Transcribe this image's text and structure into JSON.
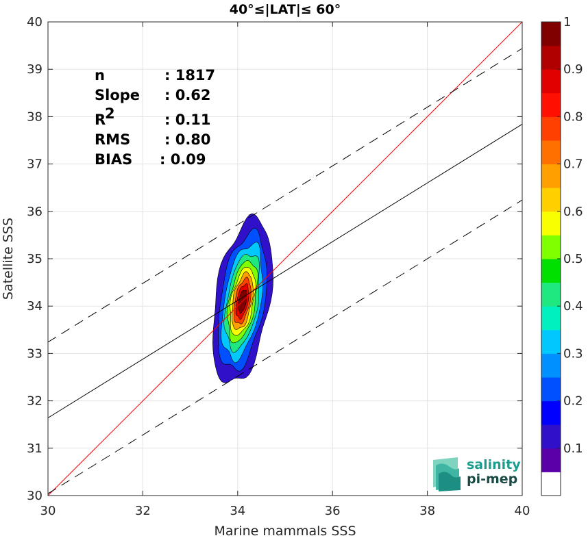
{
  "chart_data": {
    "type": "contour-scatter",
    "title": "40°≤|LAT|≤ 60°",
    "xlabel": "Marine mammals SSS",
    "ylabel": "Satellite SSS",
    "xlim": [
      30,
      40
    ],
    "ylim": [
      30,
      40
    ],
    "xticks": [
      "30",
      "32",
      "34",
      "36",
      "38",
      "40"
    ],
    "yticks": [
      "30",
      "31",
      "32",
      "33",
      "34",
      "35",
      "36",
      "37",
      "38",
      "39",
      "40"
    ],
    "grid": true,
    "stats": [
      {
        "label": "n",
        "value": ": 1817"
      },
      {
        "label": "Slope",
        "value": ": 0.62"
      },
      {
        "label": "R",
        "sup": "2",
        "value": ": 0.11"
      },
      {
        "label": "RMS",
        "value": ": 0.80"
      },
      {
        "label": "BIAS",
        "value": ": 0.09"
      }
    ],
    "lines": {
      "identity": {
        "slope": 1,
        "intercept": 0,
        "color": "#ff0000"
      },
      "fit": {
        "slope": 0.62,
        "intercept": 13.04,
        "color": "#000000"
      },
      "envelope_offset": 1.6
    },
    "density_center": {
      "x": 34.1,
      "y": 34.1
    },
    "density_contours": [
      {
        "level": 0.05,
        "hw": 0.58,
        "hh": 1.75,
        "tilt": 0.14,
        "dx": 0.0,
        "dy": 0.0
      },
      {
        "level": 0.15,
        "hw": 0.47,
        "hh": 1.45,
        "tilt": 0.14,
        "dx": 0.0,
        "dy": 0.0
      },
      {
        "level": 0.25,
        "hw": 0.39,
        "hh": 1.22,
        "tilt": 0.15,
        "dx": 0.0,
        "dy": 0.0
      },
      {
        "level": 0.35,
        "hw": 0.33,
        "hh": 1.02,
        "tilt": 0.15,
        "dx": 0.0,
        "dy": 0.0
      },
      {
        "level": 0.45,
        "hw": 0.28,
        "hh": 0.86,
        "tilt": 0.16,
        "dx": 0.0,
        "dy": 0.0
      },
      {
        "level": 0.55,
        "hw": 0.24,
        "hh": 0.72,
        "tilt": 0.16,
        "dx": 0.0,
        "dy": 0.0
      },
      {
        "level": 0.65,
        "hw": 0.2,
        "hh": 0.6,
        "tilt": 0.16,
        "dx": 0.0,
        "dy": 0.0
      },
      {
        "level": 0.75,
        "hw": 0.16,
        "hh": 0.48,
        "tilt": 0.17,
        "dx": 0.0,
        "dy": 0.0
      },
      {
        "level": 0.85,
        "hw": 0.12,
        "hh": 0.36,
        "tilt": 0.17,
        "dx": 0.0,
        "dy": 0.0
      },
      {
        "level": 0.95,
        "hw": 0.08,
        "hh": 0.24,
        "tilt": 0.17,
        "dx": 0.0,
        "dy": 0.0
      }
    ],
    "colorbar": {
      "ticks": [
        "0.1",
        "0.2",
        "0.3",
        "0.4",
        "0.5",
        "0.6",
        "0.7",
        "0.8",
        "0.9",
        "1"
      ],
      "colors": [
        "#ffffff",
        "#5a00a8",
        "#3010c8",
        "#0000ff",
        "#0050ff",
        "#0090ff",
        "#00c8ff",
        "#00f0c0",
        "#20e880",
        "#00e000",
        "#80ff00",
        "#f8ff00",
        "#ffd000",
        "#ffa000",
        "#ff7000",
        "#ff4000",
        "#ff1000",
        "#e00000",
        "#b00000",
        "#800000"
      ]
    }
  },
  "logo": {
    "line1": "salinity",
    "line2": "pi-mep"
  }
}
